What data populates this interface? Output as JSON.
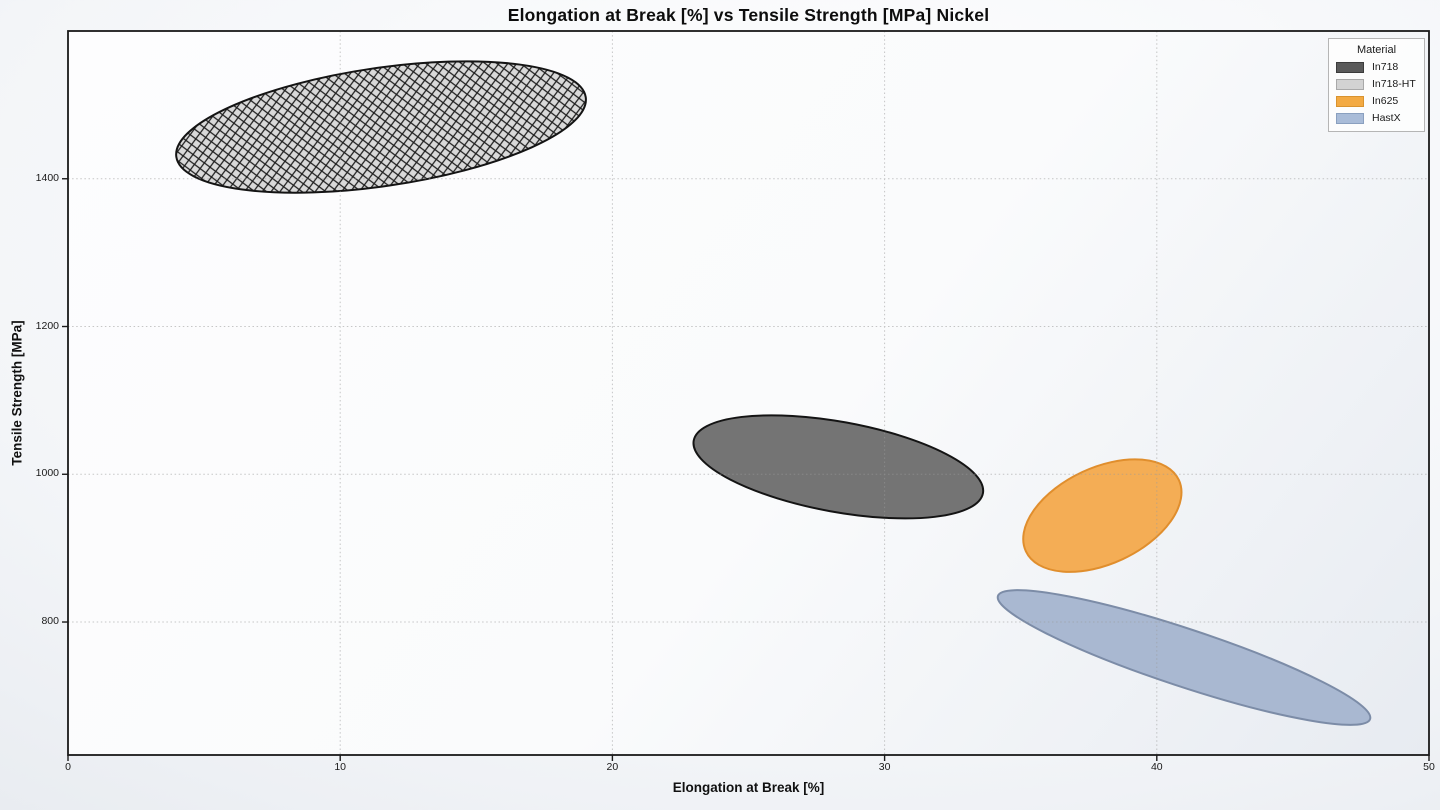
{
  "title": "Elongation at Break [%] vs Tensile Strength [MPa] Nickel",
  "axes": {
    "xlabel": "Elongation at Break [%]",
    "ylabel": "Tensile Strength [MPa]"
  },
  "legend": {
    "title": "Material",
    "items": [
      {
        "label": "In718",
        "fill": "#5a5a5a",
        "edge": "#3c3c3c"
      },
      {
        "label": "In718-HT",
        "fill": "#d3d3d3",
        "edge": "#a9a9a9"
      },
      {
        "label": "In625",
        "fill": "#f3aa43",
        "edge": "#d9932f"
      },
      {
        "label": "HastX",
        "fill": "#a9bcd8",
        "edge": "#8aa0bf"
      }
    ]
  },
  "chart_data": {
    "type": "scatter",
    "subtype": "material-property-ellipse-regions",
    "title": "Elongation at Break [%] vs Tensile Strength [MPa] Nickel",
    "xlabel": "Elongation at Break [%]",
    "ylabel": "Tensile Strength [MPa]",
    "xlim": [
      0,
      50
    ],
    "ylim": [
      620,
      1600
    ],
    "xticks": [
      0,
      10,
      20,
      30,
      40,
      50
    ],
    "yticks": [
      800,
      1000,
      1200,
      1400
    ],
    "grid": true,
    "grid_style": "dotted",
    "legend_position": "upper right",
    "spine_color": "#1a1a1a",
    "grid_color": "#9a9a9a",
    "series": [
      {
        "name": "In718-HT",
        "shape": "ellipse",
        "center": {
          "elongation_pct": 11.5,
          "tensile_mpa": 1470
        },
        "semi_axis_x_pct": 7.6,
        "semi_axis_y_mpa": 80,
        "rotation_deg": -8.3,
        "fill": "#d9d9d9",
        "edge": "#141414",
        "hatch": "xx"
      },
      {
        "name": "In718",
        "shape": "ellipse",
        "center": {
          "elongation_pct": 28.3,
          "tensile_mpa": 1010
        },
        "semi_axis_x_pct": 5.4,
        "semi_axis_y_mpa": 61,
        "rotation_deg": 10.3,
        "fill": "#747474",
        "edge": "#141414",
        "hatch": null
      },
      {
        "name": "In625",
        "shape": "ellipse",
        "center": {
          "elongation_pct": 38.0,
          "tensile_mpa": 944
        },
        "semi_axis_x_pct": 3.1,
        "semi_axis_y_mpa": 65,
        "rotation_deg": -25,
        "fill": "#f4ad55",
        "edge": "#e08e2d",
        "hatch": null
      },
      {
        "name": "HastX",
        "shape": "ellipse",
        "center": {
          "elongation_pct": 41.0,
          "tensile_mpa": 752
        },
        "semi_axis_x_pct": 7.2,
        "semi_axis_y_mpa": 39,
        "rotation_deg": 18.3,
        "fill": "#a9b8d1",
        "edge": "#7c8ca7",
        "hatch": null
      }
    ]
  }
}
